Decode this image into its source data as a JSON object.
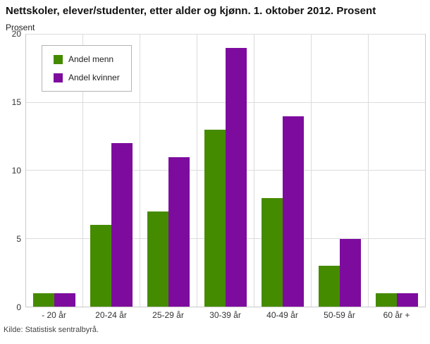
{
  "title": "Nettskoler, elever/studenter, etter alder og kjønn. 1. oktober 2012. Prosent",
  "ylabel": "Prosent",
  "source": "Kilde: Statistisk sentralbyrå.",
  "chart_data": {
    "type": "bar",
    "title": "Nettskoler, elever/studenter, etter alder og kjønn. 1. oktober 2012. Prosent",
    "xlabel": "",
    "ylabel": "Prosent",
    "ylim": [
      0,
      20
    ],
    "yticks": [
      0,
      5,
      10,
      15,
      20
    ],
    "grid": true,
    "legend_position": "top-left",
    "categories": [
      "- 20 år",
      "20-24 år",
      "25-29 år",
      "30-39 år",
      "40-49 år",
      "50-59 år",
      "60 år +"
    ],
    "series": [
      {
        "name": "Andel menn",
        "color": "#458B00",
        "values": [
          1,
          6,
          7,
          13,
          8,
          3,
          1
        ]
      },
      {
        "name": "Andel kvinner",
        "color": "#7D0C9E",
        "values": [
          1,
          12,
          11,
          19,
          14,
          5,
          1
        ]
      }
    ]
  }
}
